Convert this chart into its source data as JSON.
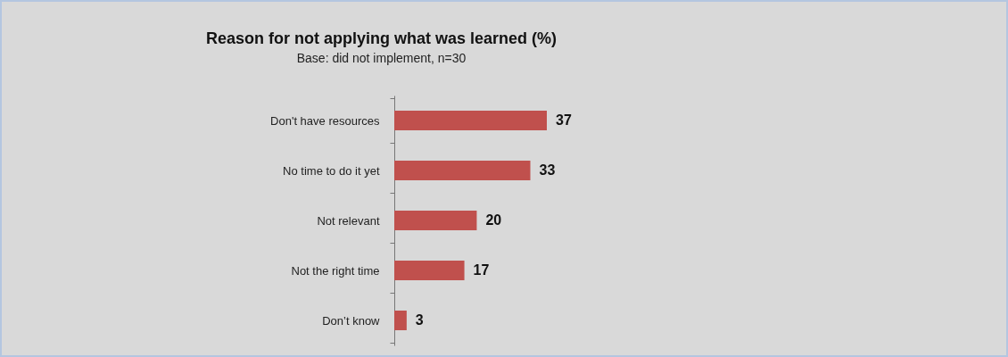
{
  "chart_data": {
    "type": "bar",
    "orientation": "horizontal",
    "title": "Reason for not applying what was learned (%)",
    "subtitle": "Base: did not implement, n=30",
    "categories": [
      "Don't have resources",
      "No time to do it yet",
      "Not relevant",
      "Not the right time",
      "Don’t know"
    ],
    "values": [
      37,
      33,
      20,
      17,
      3
    ],
    "color": "#c0504d",
    "data_labels": true
  }
}
